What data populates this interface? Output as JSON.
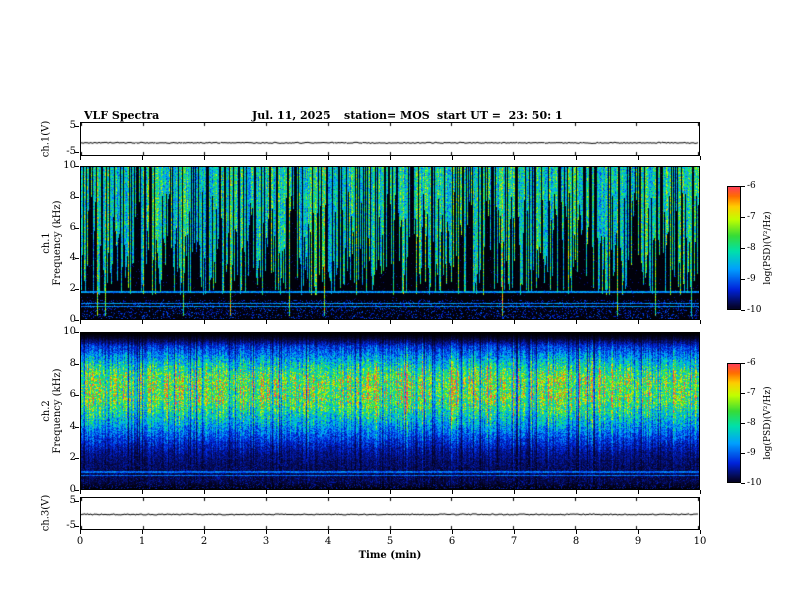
{
  "header": {
    "title": "VLF Spectra",
    "date": "Jul. 11, 2025",
    "station": "station= MOS",
    "start_ut": "start UT =  23: 50: 1"
  },
  "axes": {
    "x_label": "Time (min)",
    "x_ticks": [
      "0",
      "1",
      "2",
      "3",
      "4",
      "5",
      "6",
      "7",
      "8",
      "9",
      "10"
    ]
  },
  "panels": {
    "ch1_voltage": {
      "label": "ch.1(V)",
      "y_ticks": [
        "5",
        "-5"
      ]
    },
    "ch1_spec": {
      "channel": "ch.1",
      "ylabel": "Frequency (kHz)",
      "y_ticks": [
        "10",
        "8",
        "6",
        "4",
        "2",
        "0"
      ]
    },
    "ch2_spec": {
      "channel": "ch.2",
      "ylabel": "Frequency (kHz)",
      "y_ticks": [
        "10",
        "8",
        "6",
        "4",
        "2",
        "0"
      ]
    },
    "ch3_voltage": {
      "label": "ch.3(V)",
      "y_ticks": [
        "5",
        "-5"
      ]
    }
  },
  "colorbar": {
    "label": "log(PSD)(V²/Hz)",
    "ticks": [
      "-6",
      "-7",
      "-8",
      "-9",
      "-10"
    ]
  },
  "chart_data": [
    {
      "id": "ch1_voltage_trace",
      "type": "line",
      "panel_label": "ch.1(V)",
      "xlim": [
        0,
        10
      ],
      "ylim": [
        -5,
        5
      ],
      "yticks": [
        5,
        -5
      ],
      "series": [
        {
          "name": "ch.1 voltage",
          "shape": "flat",
          "mean": -1.2,
          "noise_amplitude": 0.1
        }
      ]
    },
    {
      "id": "ch1_spectrogram",
      "type": "heatmap",
      "panel_label": "ch.1",
      "xlabel": "Time (min)",
      "xlim": [
        0,
        10
      ],
      "ylabel": "Frequency (kHz)",
      "ylim": [
        0,
        10
      ],
      "yticks": [
        0,
        2,
        4,
        6,
        8,
        10
      ],
      "zlabel": "log(PSD)(V²/Hz)",
      "zlim": [
        -10,
        -6
      ],
      "background_level": -10,
      "features": {
        "impulsive_broadband_streaks": {
          "density_fraction_of_columns": 0.72,
          "freq_extent_khz": [
            1.6,
            10
          ],
          "typical_level": -7.5
        },
        "narrowband_lines_khz": [
          0.85,
          1.05,
          1.8
        ],
        "narrowband_level": -8.7,
        "low_band_speckle_below_khz": 1.3
      }
    },
    {
      "id": "ch2_spectrogram",
      "type": "heatmap",
      "panel_label": "ch.2",
      "xlabel": "Time (min)",
      "xlim": [
        0,
        10
      ],
      "ylabel": "Frequency (kHz)",
      "ylim": [
        0,
        10
      ],
      "yticks": [
        0,
        2,
        4,
        6,
        8,
        10
      ],
      "zlabel": "log(PSD)(V²/Hz)",
      "zlim": [
        -10,
        -6
      ],
      "background_level": -10,
      "features": {
        "continuous_emission_band": {
          "center_khz": 6.7,
          "width_khz": 3.5,
          "peak_level": -6.5
        },
        "vertical_streak_modulation": true,
        "narrowband_lines_khz": [
          0.9,
          1.1
        ],
        "fade_above_khz": 9.2
      }
    },
    {
      "id": "ch3_voltage_trace",
      "type": "line",
      "panel_label": "ch.3(V)",
      "xlim": [
        0,
        10
      ],
      "ylim": [
        -5,
        5
      ],
      "yticks": [
        5,
        -5
      ],
      "series": [
        {
          "name": "ch.3 voltage",
          "shape": "flat",
          "mean": -0.3,
          "noise_amplitude": 0.1
        }
      ]
    }
  ]
}
